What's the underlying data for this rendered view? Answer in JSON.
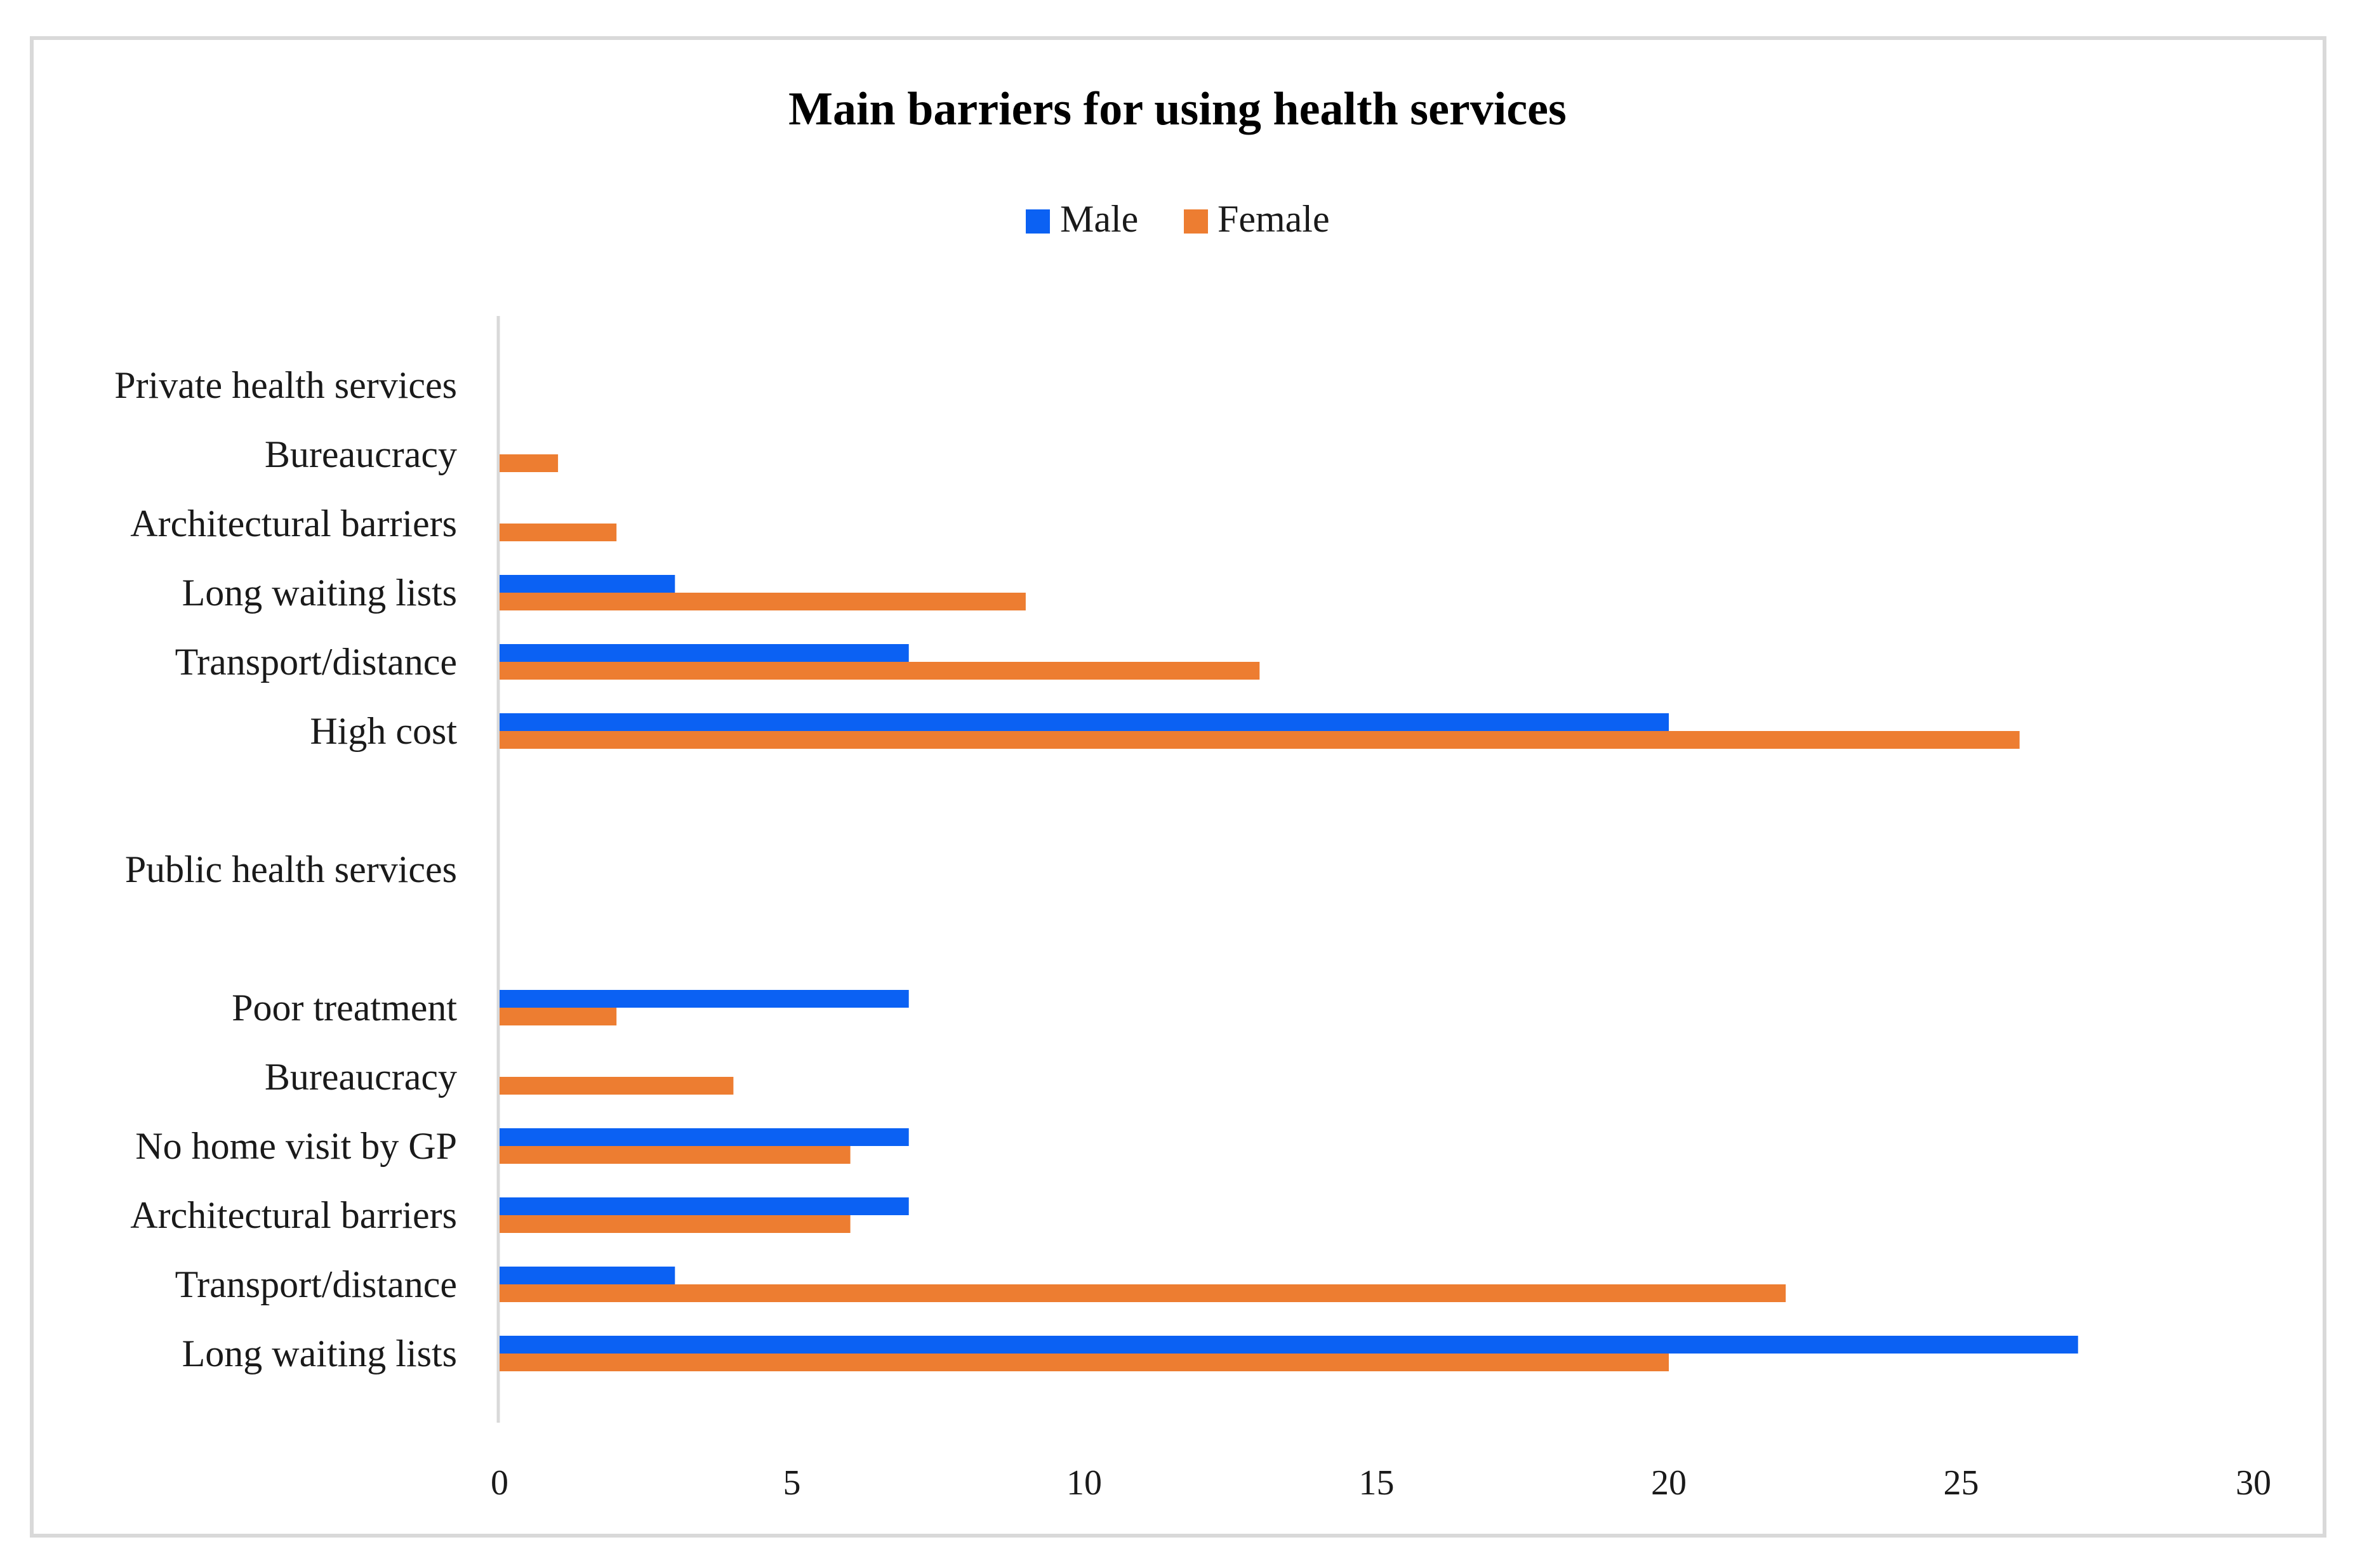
{
  "chart_data": {
    "type": "bar",
    "orientation": "horizontal",
    "title": "Main barriers for using health services",
    "xlabel": "",
    "ylabel": "",
    "xlim": [
      0,
      30
    ],
    "x_ticks": [
      0,
      5,
      10,
      15,
      20,
      25,
      30
    ],
    "grid": false,
    "legend_position": "top-center",
    "series": [
      {
        "name": "Male",
        "color": "#0b61f3"
      },
      {
        "name": "Female",
        "color": "#ed7d31"
      }
    ],
    "categories": [
      {
        "label": "Private health services",
        "group_header": true
      },
      {
        "label": "Bureaucracy",
        "group": "Private health services",
        "male": 0,
        "female": 1
      },
      {
        "label": "Architectural barriers",
        "group": "Private health services",
        "male": 0,
        "female": 2
      },
      {
        "label": "Long waiting lists",
        "group": "Private health services",
        "male": 3,
        "female": 9
      },
      {
        "label": "Transport/distance",
        "group": "Private health services",
        "male": 7,
        "female": 13
      },
      {
        "label": "High cost",
        "group": "Private health services",
        "male": 20,
        "female": 26
      },
      {
        "label": "",
        "spacer": true
      },
      {
        "label": "Public health services",
        "group_header": true
      },
      {
        "label": "",
        "spacer": true
      },
      {
        "label": "Poor treatment",
        "group": "Public health services",
        "male": 7,
        "female": 2
      },
      {
        "label": "Bureaucracy",
        "group": "Public health services",
        "male": 0,
        "female": 4
      },
      {
        "label": "No home visit by GP",
        "group": "Public health services",
        "male": 7,
        "female": 6
      },
      {
        "label": "Architectural barriers",
        "group": "Public health services",
        "male": 7,
        "female": 6
      },
      {
        "label": "Transport/distance",
        "group": "Public health services",
        "male": 3,
        "female": 22
      },
      {
        "label": "Long waiting lists",
        "group": "Public health services",
        "male": 27,
        "female": 20
      }
    ]
  }
}
